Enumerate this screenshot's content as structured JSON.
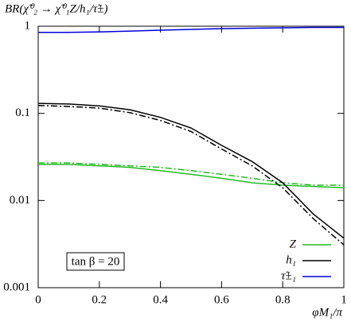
{
  "chart_data": {
    "type": "line",
    "title": "BR(χ̃⁰₂ → χ̃⁰₁Z/h₁/τ̃±)",
    "x_label": "φM₁/π",
    "annotation": "tan β = 20",
    "x": [
      0,
      0.1,
      0.2,
      0.3,
      0.4,
      0.5,
      0.6,
      0.7,
      0.8,
      0.9,
      1
    ],
    "series": [
      {
        "name": "Z",
        "color": "#22bb22",
        "dash": "solid",
        "values": [
          0.026,
          0.026,
          0.025,
          0.024,
          0.022,
          0.02,
          0.018,
          0.016,
          0.015,
          0.0145,
          0.014
        ]
      },
      {
        "color": "#22bb22",
        "dash": "dashdot",
        "values": [
          0.027,
          0.027,
          0.026,
          0.025,
          0.024,
          0.022,
          0.02,
          0.018,
          0.016,
          0.015,
          0.015
        ]
      },
      {
        "name": "h₁",
        "color": "#000000",
        "dash": "solid",
        "values": [
          0.13,
          0.128,
          0.122,
          0.11,
          0.09,
          0.068,
          0.043,
          0.028,
          0.016,
          0.007,
          0.0037
        ]
      },
      {
        "color": "#000000",
        "dash": "dashdot",
        "values": [
          0.123,
          0.12,
          0.115,
          0.102,
          0.083,
          0.062,
          0.039,
          0.025,
          0.014,
          0.0062,
          0.0031
        ]
      },
      {
        "name": "τ̃±₁",
        "color": "#0000dd",
        "dash": "solid",
        "values": [
          0.85,
          0.85,
          0.86,
          0.88,
          0.9,
          0.92,
          0.94,
          0.95,
          0.96,
          0.97,
          0.97
        ]
      }
    ],
    "xlim": [
      0,
      1
    ],
    "xticks": [
      0,
      0.2,
      0.4,
      0.6,
      0.8,
      1
    ],
    "ylim": [
      0.001,
      1
    ],
    "yticks": [
      1,
      0.1,
      0.01,
      0.001
    ],
    "log_y": true,
    "legend": "lower right"
  }
}
